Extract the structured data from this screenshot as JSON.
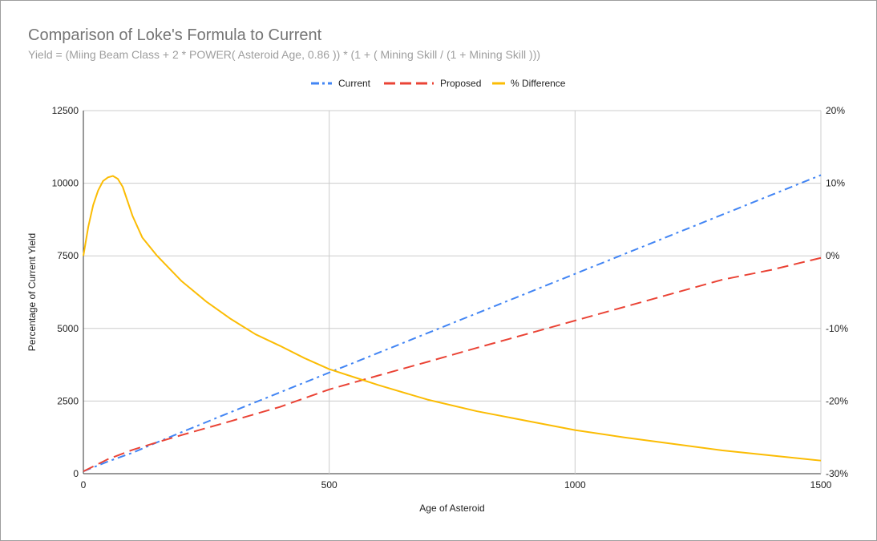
{
  "chart_data": {
    "type": "line",
    "title": "Comparison of Loke's Formula to Current",
    "subtitle": "Yield = (Miing Beam Class + 2 * POWER( Asteroid Age, 0.86 )) * (1 + ( Mining Skill / (1 + Mining Skill )))",
    "xlabel": "Age of Asteroid",
    "ylabel": "Percentage of Current Yield",
    "y2label": "",
    "xlim": [
      0,
      1500
    ],
    "ylim": [
      0,
      12500
    ],
    "y2lim": [
      -30,
      20
    ],
    "x_ticks": [
      "0",
      "500",
      "1000",
      "1500"
    ],
    "y_ticks": [
      "0",
      "2500",
      "5000",
      "7500",
      "10000",
      "12500"
    ],
    "y2_ticks": [
      "-30%",
      "-20%",
      "-10%",
      "0%",
      "10%",
      "20%"
    ],
    "grid": true,
    "legend_position": "top",
    "series": [
      {
        "name": "Current",
        "axis": "left",
        "color": "#4285f4",
        "dash": "dash-dot",
        "x": [
          0,
          50,
          100,
          150,
          200,
          300,
          400,
          500,
          600,
          700,
          800,
          900,
          1000,
          1100,
          1200,
          1300,
          1400,
          1500
        ],
        "y": [
          80,
          420,
          720,
          1080,
          1430,
          2120,
          2800,
          3480,
          4160,
          4840,
          5520,
          6200,
          6880,
          7560,
          8240,
          8920,
          9600,
          10280
        ]
      },
      {
        "name": "Proposed",
        "axis": "left",
        "color": "#ea4335",
        "dash": "dash",
        "x": [
          0,
          50,
          100,
          150,
          200,
          300,
          400,
          500,
          600,
          700,
          800,
          900,
          1000,
          1100,
          1200,
          1300,
          1400,
          1500
        ],
        "y": [
          80,
          500,
          820,
          1080,
          1330,
          1810,
          2300,
          2900,
          3380,
          3850,
          4330,
          4800,
          5270,
          5740,
          6210,
          6680,
          7020,
          7430
        ]
      },
      {
        "name": "% Difference",
        "axis": "right",
        "color": "#fbbc04",
        "dash": "solid",
        "x": [
          0,
          10,
          20,
          30,
          40,
          50,
          60,
          70,
          80,
          90,
          100,
          120,
          150,
          200,
          250,
          300,
          350,
          400,
          450,
          500,
          550,
          600,
          700,
          800,
          900,
          1000,
          1100,
          1200,
          1300,
          1400,
          1500
        ],
        "y": [
          0,
          4,
          7,
          9,
          10.3,
          10.8,
          11,
          10.6,
          9.5,
          7.5,
          5.5,
          2.5,
          0,
          -3.5,
          -6.3,
          -8.7,
          -10.8,
          -12.4,
          -14.1,
          -15.6,
          -16.7,
          -17.8,
          -19.8,
          -21.4,
          -22.7,
          -24,
          -25,
          -25.9,
          -26.8,
          -27.5,
          -28.2
        ]
      }
    ]
  }
}
